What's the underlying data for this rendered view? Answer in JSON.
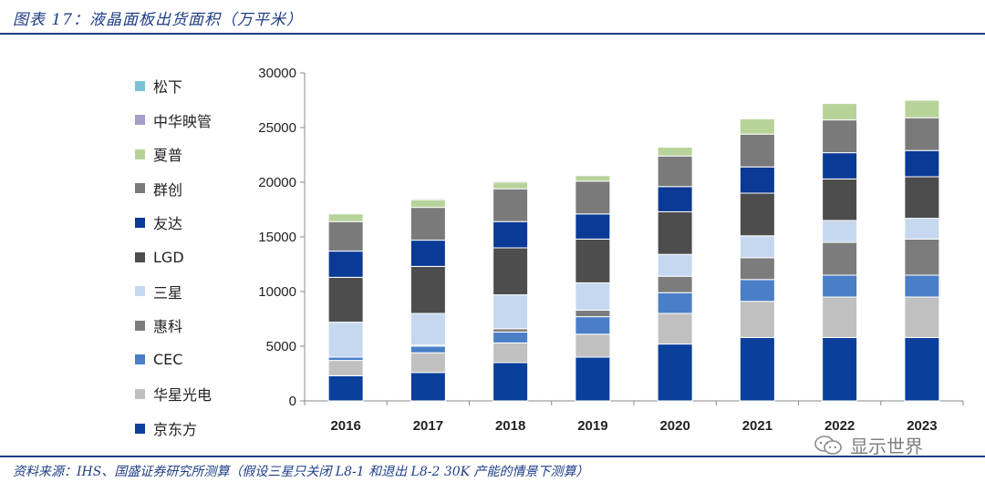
{
  "header": {
    "title": "图表 17：液晶面板出货面积（万平米）"
  },
  "footer": {
    "source": "资料来源：IHS、国盛证券研究所测算（假设三星只关闭 L8-1 和退出 L8-2 30K 产能的情景下测算）"
  },
  "watermark": {
    "text": "显示世界",
    "icon": "wechat-logo-icon"
  },
  "chart_data": {
    "type": "bar",
    "stacked": true,
    "title": "液晶面板出货面积（万平米）",
    "xlabel": "",
    "ylabel": "",
    "ylim": [
      0,
      30000
    ],
    "yticks": [
      0,
      5000,
      10000,
      15000,
      20000,
      25000,
      30000
    ],
    "ytick_labels": [
      "0",
      "5000",
      "10000",
      "15000",
      "20000",
      "25000",
      "30000"
    ],
    "grid": false,
    "legend_position": "left",
    "categories": [
      "2016",
      "2017",
      "2018",
      "2019",
      "2020",
      "2021",
      "2022",
      "2023"
    ],
    "series": [
      {
        "name": "京东方",
        "color": "#0a3f9c",
        "values": [
          2300,
          2600,
          3500,
          4000,
          5200,
          5800,
          5800,
          5800
        ]
      },
      {
        "name": "华星光电",
        "color": "#c0c0c0",
        "values": [
          1400,
          1800,
          1800,
          2100,
          2800,
          3300,
          3700,
          3700
        ]
      },
      {
        "name": "CEC",
        "color": "#4a7fc8",
        "values": [
          300,
          600,
          1000,
          1600,
          1900,
          2000,
          2000,
          2000
        ]
      },
      {
        "name": "惠科",
        "color": "#7c7c7c",
        "values": [
          0,
          100,
          300,
          600,
          1500,
          2000,
          3000,
          3300
        ]
      },
      {
        "name": "三星",
        "color": "#c5d8ef",
        "values": [
          3200,
          2900,
          3100,
          2500,
          2000,
          2000,
          2000,
          1900
        ]
      },
      {
        "name": "LGD",
        "color": "#4d4d4d",
        "values": [
          4100,
          4300,
          4300,
          4000,
          3900,
          3900,
          3800,
          3800
        ]
      },
      {
        "name": "友达",
        "color": "#0b3a96",
        "values": [
          2400,
          2400,
          2400,
          2300,
          2300,
          2400,
          2400,
          2400
        ]
      },
      {
        "name": "群创",
        "color": "#7a7a7a",
        "values": [
          2700,
          3000,
          3000,
          3000,
          2800,
          3000,
          3000,
          3000
        ]
      },
      {
        "name": "夏普",
        "color": "#b7d39a",
        "values": [
          700,
          700,
          600,
          500,
          800,
          1400,
          1500,
          1600
        ]
      },
      {
        "name": "中华映管",
        "color": "#a49ec8",
        "values": [
          0,
          100,
          100,
          0,
          0,
          0,
          0,
          0
        ]
      },
      {
        "name": "松下",
        "color": "#79c2d6",
        "values": [
          0,
          0,
          0,
          0,
          0,
          0,
          0,
          0
        ]
      }
    ]
  }
}
